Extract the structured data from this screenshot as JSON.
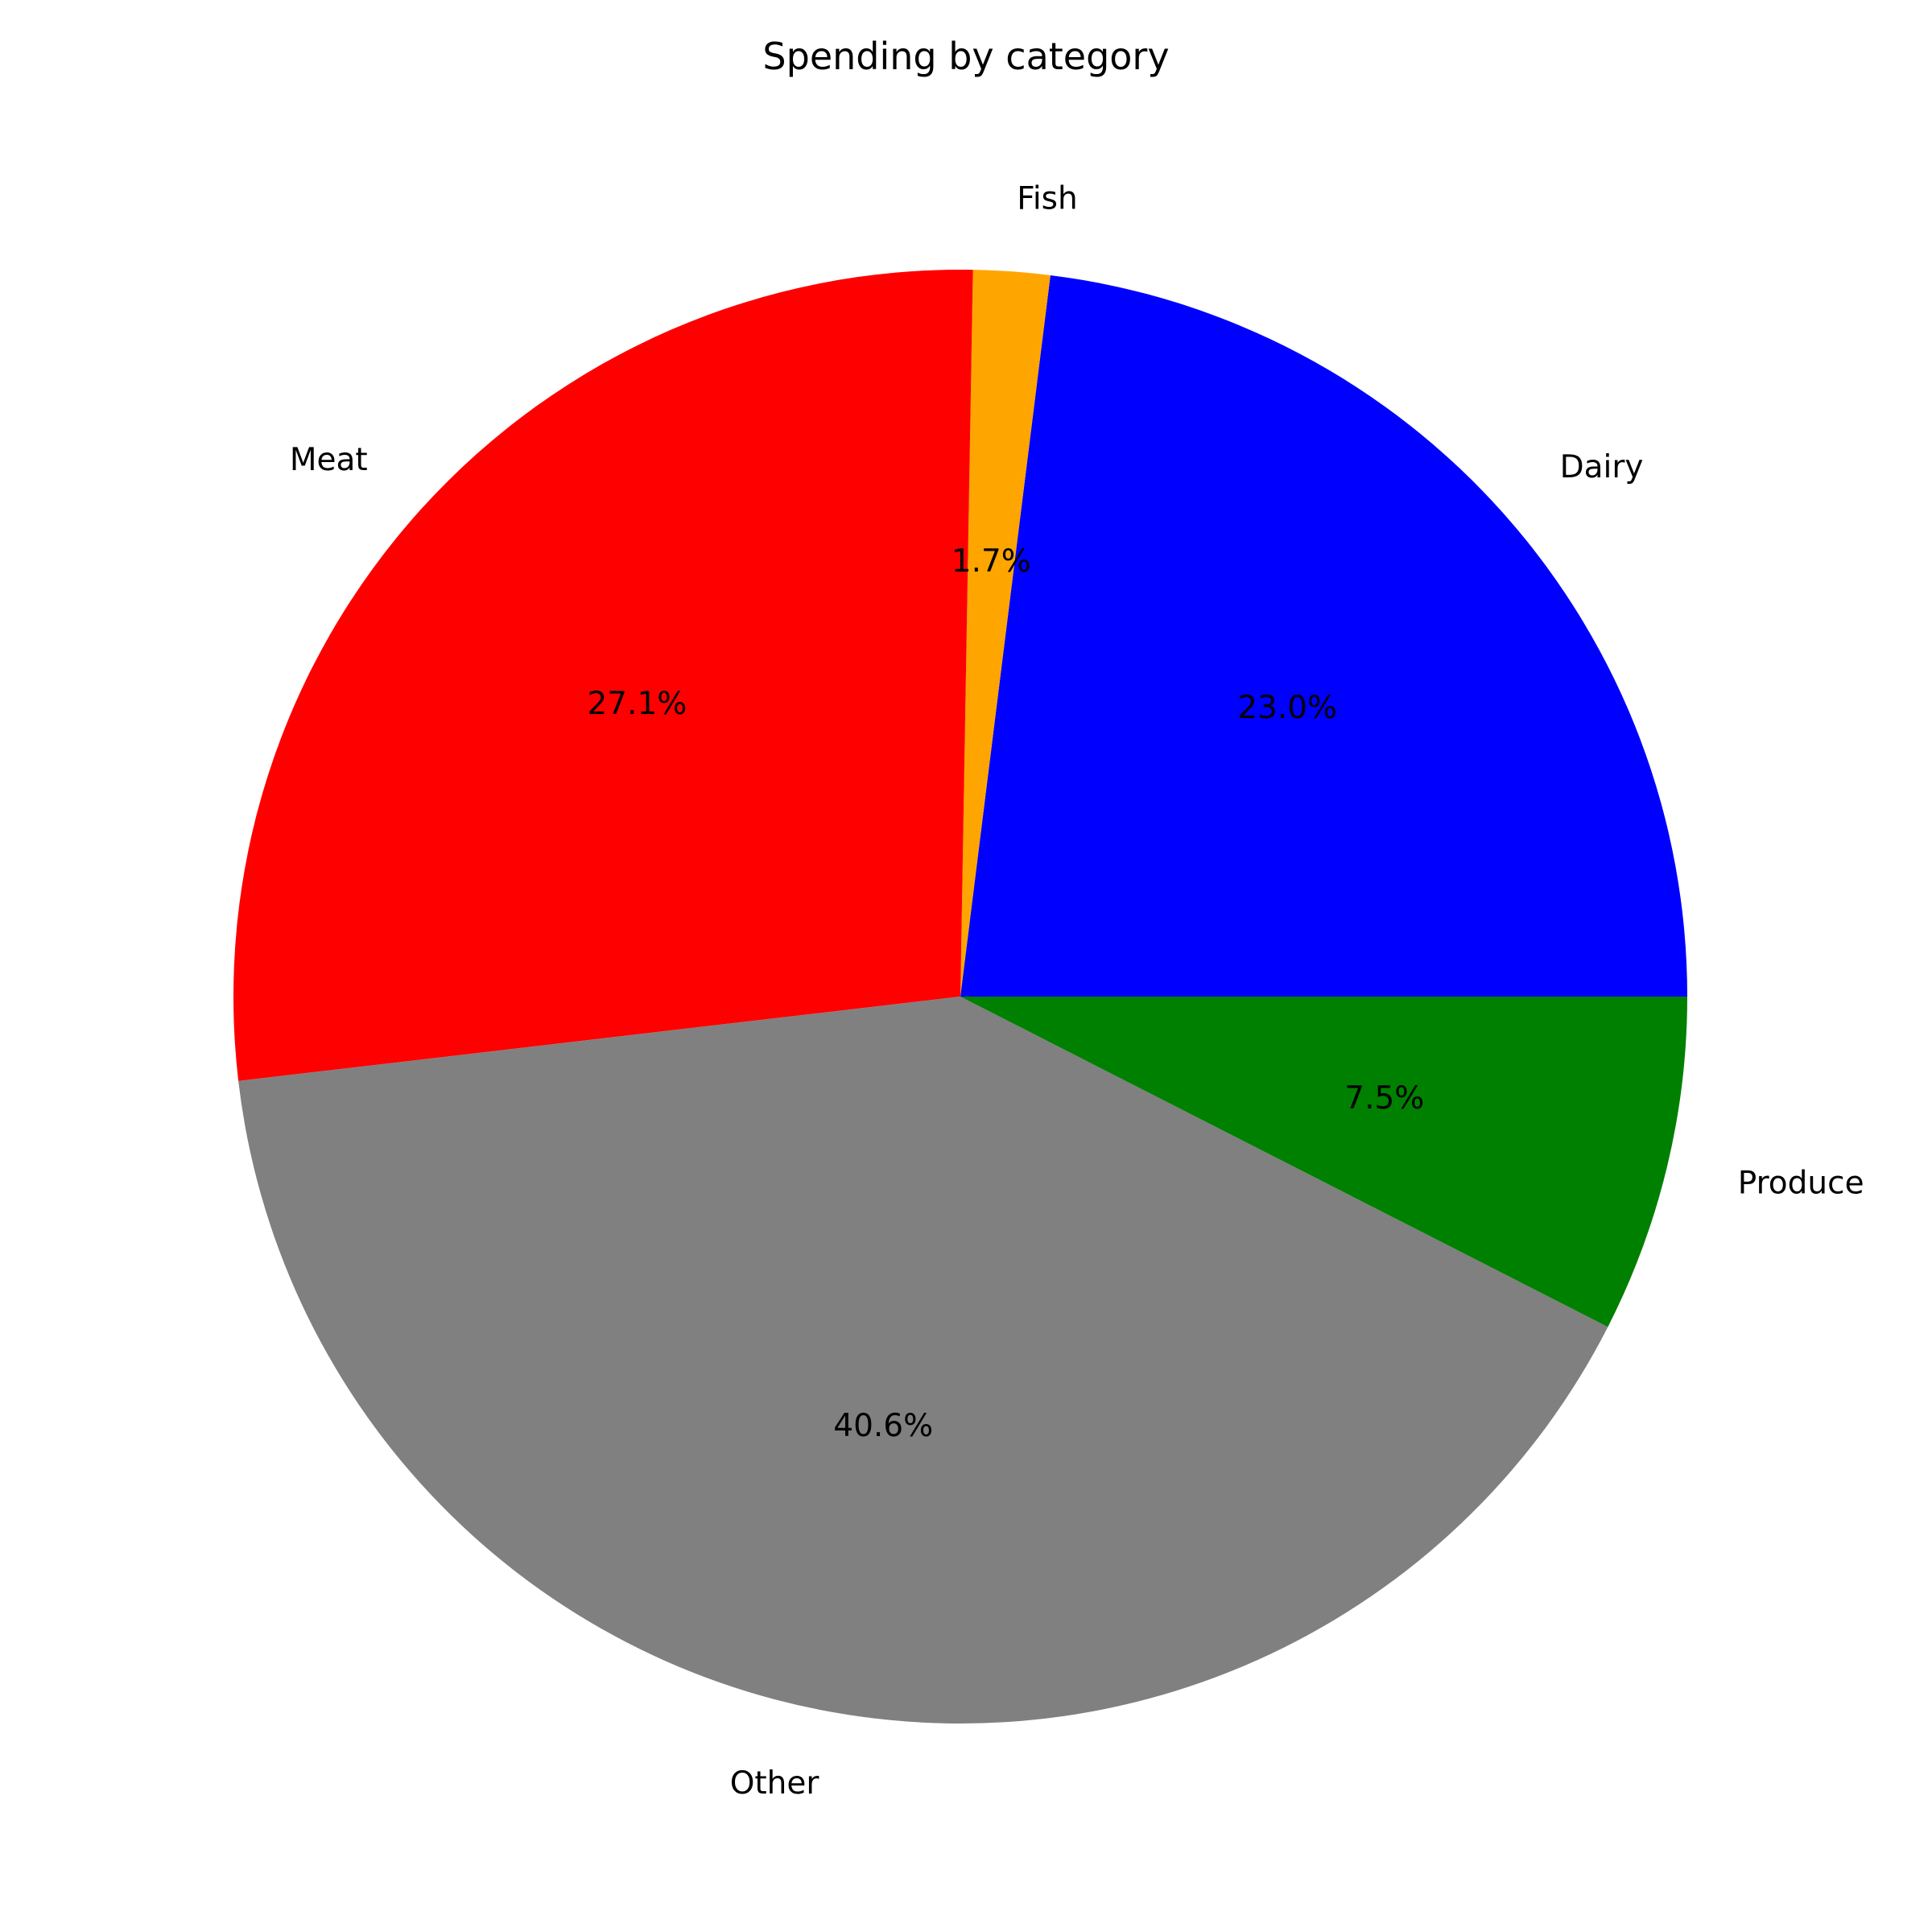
{
  "chart_data": {
    "type": "pie",
    "title": "Spending by category",
    "slices": [
      {
        "label": "Dairy",
        "pct_label": "23.0%",
        "value": 23.0,
        "color": "#0000ff"
      },
      {
        "label": "Fish",
        "pct_label": "1.7%",
        "value": 1.7,
        "color": "#ffa500"
      },
      {
        "label": "Meat",
        "pct_label": "27.1%",
        "value": 27.1,
        "color": "#ff0000"
      },
      {
        "label": "Other",
        "pct_label": "40.6%",
        "value": 40.6,
        "color": "#808080"
      },
      {
        "label": "Produce",
        "pct_label": "7.5%",
        "value": 7.5,
        "color": "#008000"
      }
    ],
    "direction": "counterclockwise",
    "legend": "none"
  }
}
